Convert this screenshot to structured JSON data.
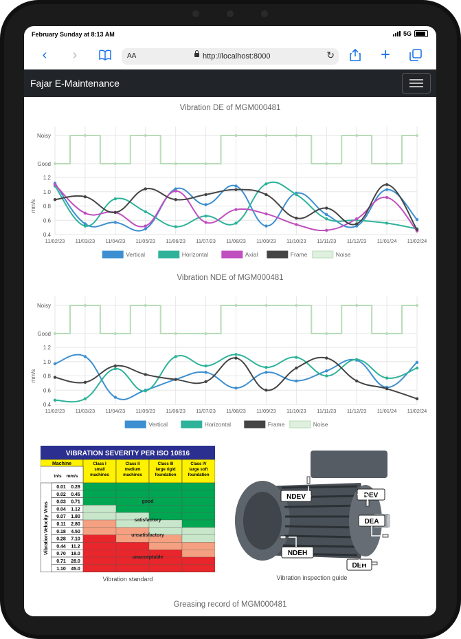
{
  "status": {
    "time": "February Sunday at 8:13 AM",
    "network": "5G"
  },
  "browser": {
    "aa": "AA",
    "url": "http://localhost:8000"
  },
  "navbar": {
    "brand": "Fajar E-Maintenance"
  },
  "chart_de_title": "Vibration DE of MGM000481",
  "chart_nde_title": "Vibration NDE of MGM000481",
  "caption_standard": "Vibration standard",
  "caption_guide": "Vibration inspection guide",
  "greasing_title": "Greasing record of MGM000481",
  "severity_table": {
    "title": "VIBRATION SEVERITY PER ISO 10816",
    "machine": "Machine",
    "classes": [
      {
        "name": "Class I",
        "desc": "small machines"
      },
      {
        "name": "Class II",
        "desc": "medium machines"
      },
      {
        "name": "Class III",
        "desc": "large rigid foundation"
      },
      {
        "name": "Class IV",
        "desc": "large soft foundation"
      }
    ],
    "units": [
      "in/s",
      "mm/s"
    ],
    "side_label": "Vibration Velocity Vrms",
    "rows": [
      [
        "0.01",
        "0.28"
      ],
      [
        "0.02",
        "0.45"
      ],
      [
        "0.03",
        "0.71"
      ],
      [
        "0.04",
        "1.12"
      ],
      [
        "0.07",
        "1.80"
      ],
      [
        "0.11",
        "2.80"
      ],
      [
        "0.18",
        "4.50"
      ],
      [
        "0.28",
        "7.10"
      ],
      [
        "0.44",
        "11.2"
      ],
      [
        "0.70",
        "18.0"
      ],
      [
        "0.71",
        "28.0"
      ],
      [
        "1.10",
        "45.0"
      ]
    ],
    "zones": [
      "good",
      "satisfactory",
      "unsatisfactory",
      "unacceptable"
    ],
    "colors": {
      "header": "#2b2f8f",
      "yellow": "#fff200",
      "good": "#00a651",
      "satisfactory": "#c8e6c9",
      "unsatisfactory": "#f4a081",
      "unacceptable": "#e8262b"
    }
  },
  "motor_labels": [
    "NDEV",
    "DEV",
    "DEA",
    "NDEH",
    "DEH"
  ],
  "chart_data": [
    {
      "type": "line",
      "title": "Vibration DE of MGM000481",
      "x": [
        "11/02/23",
        "11/03/23",
        "11/04/23",
        "11/05/23",
        "11/06/23",
        "11/07/23",
        "11/08/23",
        "11/09/23",
        "11/10/23",
        "11/11/23",
        "11/12/23",
        "11/01/24",
        "11/02/24"
      ],
      "ylabel": "mm/s",
      "ylim": [
        0.4,
        1.2
      ],
      "yticks": [
        "1.2",
        "1.0",
        "0.8",
        "0.6",
        "0.4"
      ],
      "noise_ticks": [
        "Noisy",
        "Good"
      ],
      "series": [
        {
          "name": "Vertical",
          "color": "#3d8fd1",
          "values": [
            1.12,
            0.55,
            0.57,
            0.48,
            1.04,
            0.82,
            1.08,
            0.52,
            0.98,
            0.68,
            0.52,
            1.03,
            0.61
          ]
        },
        {
          "name": "Horizontal",
          "color": "#2eb39a",
          "values": [
            1.08,
            0.52,
            0.9,
            0.72,
            0.51,
            0.66,
            0.56,
            1.11,
            0.96,
            0.62,
            0.6,
            0.56,
            0.48
          ]
        },
        {
          "name": "Axial",
          "color": "#c04fc0",
          "values": [
            1.1,
            0.7,
            0.71,
            0.52,
            1.01,
            0.57,
            0.75,
            0.69,
            0.54,
            0.46,
            0.62,
            0.92,
            0.45
          ]
        },
        {
          "name": "Frame",
          "color": "#444444",
          "values": [
            0.89,
            0.93,
            0.71,
            1.04,
            0.89,
            0.96,
            1.03,
            0.96,
            0.63,
            0.77,
            0.55,
            1.1,
            0.47
          ]
        },
        {
          "name": "Noise",
          "color": "#b8dcb8",
          "noise": [
            "Good",
            "Noisy",
            "Good",
            "Noisy",
            "Good",
            "Good",
            "Noisy",
            "Noisy",
            "Noisy",
            "Good",
            "Noisy",
            "Good",
            "Noisy"
          ]
        }
      ]
    },
    {
      "type": "line",
      "title": "Vibration NDE of MGM000481",
      "x": [
        "11/02/23",
        "11/03/23",
        "11/04/23",
        "11/05/23",
        "11/06/23",
        "11/07/23",
        "11/08/23",
        "11/09/23",
        "11/10/23",
        "11/11/23",
        "11/12/23",
        "11/01/24",
        "11/02/24"
      ],
      "ylabel": "mm/s",
      "ylim": [
        0.4,
        1.2
      ],
      "yticks": [
        "1.2",
        "1.0",
        "0.8",
        "0.6",
        "0.4"
      ],
      "noise_ticks": [
        "Noisy",
        "Good"
      ],
      "series": [
        {
          "name": "Vertical",
          "color": "#3d8fd1",
          "values": [
            0.97,
            1.07,
            0.5,
            0.6,
            0.75,
            0.85,
            0.63,
            0.85,
            0.73,
            0.87,
            1.02,
            0.64,
            0.99
          ]
        },
        {
          "name": "Horizontal",
          "color": "#2eb39a",
          "values": [
            0.46,
            0.48,
            0.9,
            0.59,
            1.07,
            0.94,
            1.1,
            0.92,
            1.06,
            0.8,
            1.03,
            0.77,
            0.91
          ]
        },
        {
          "name": "Frame",
          "color": "#444444",
          "values": [
            0.78,
            0.71,
            0.94,
            0.82,
            0.75,
            0.72,
            1.05,
            0.6,
            0.91,
            1.05,
            0.73,
            0.62,
            0.48
          ]
        },
        {
          "name": "Noise",
          "color": "#b8dcb8",
          "noise": [
            "Good",
            "Noisy",
            "Good",
            "Noisy",
            "Good",
            "Good",
            "Noisy",
            "Noisy",
            "Noisy",
            "Good",
            "Noisy",
            "Good",
            "Noisy"
          ]
        }
      ]
    }
  ]
}
